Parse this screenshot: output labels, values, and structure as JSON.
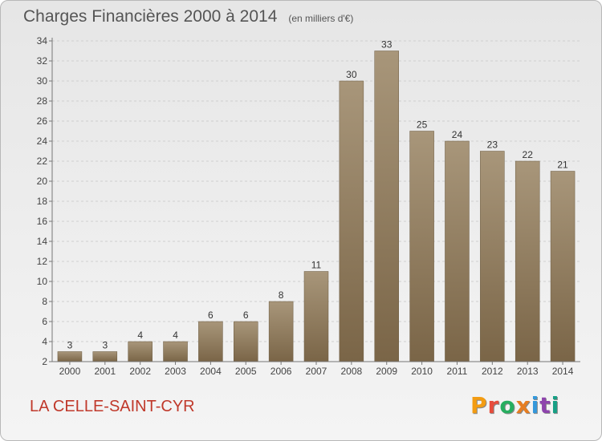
{
  "header": {
    "title": "Charges Financières 2000 à 2014",
    "subtitle": "(en milliers d'€)"
  },
  "footer": {
    "commune": "LA CELLE-SAINT-CYR",
    "logo": "Proxiti",
    "logo_colors": [
      "#f39c12",
      "#e74c3c",
      "#27ae60",
      "#e67e22",
      "#3498db",
      "#8e44ad",
      "#16a085"
    ]
  },
  "colors": {
    "bar_light": "#a8967a",
    "bar_dark": "#7a6547",
    "commune_text": "#c0392b"
  },
  "chart_data": {
    "type": "bar",
    "title": "Charges Financières 2000 à 2014",
    "subtitle": "(en milliers d'€)",
    "categories": [
      "2000",
      "2001",
      "2002",
      "2003",
      "2004",
      "2005",
      "2006",
      "2007",
      "2008",
      "2009",
      "2010",
      "2011",
      "2012",
      "2013",
      "2014"
    ],
    "values": [
      3,
      3,
      4,
      4,
      6,
      6,
      8,
      11,
      30,
      33,
      25,
      24,
      23,
      22,
      21
    ],
    "ylim": [
      2,
      34
    ],
    "yticks": [
      2,
      4,
      6,
      8,
      10,
      12,
      14,
      16,
      18,
      20,
      22,
      24,
      26,
      28,
      30,
      32,
      34
    ],
    "grid": true,
    "legend": "none"
  }
}
